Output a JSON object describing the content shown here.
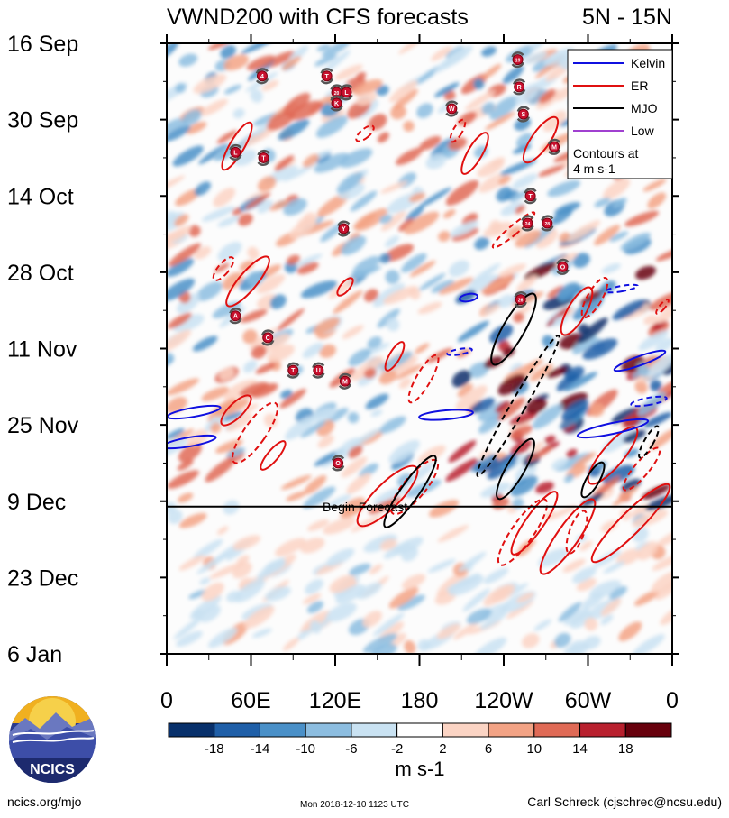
{
  "chart_data": {
    "type": "heatmap",
    "title": "VWND200 with CFS forecasts",
    "region": "5N - 15N",
    "xlabel": "",
    "ylabel": "",
    "x_ticks": [
      "0",
      "60E",
      "120E",
      "180",
      "120W",
      "60W",
      "0"
    ],
    "y_ticks": [
      "16 Sep",
      "30 Sep",
      "14 Oct",
      "28 Oct",
      "11 Nov",
      "25 Nov",
      "9 Dec",
      "23 Dec",
      "6 Jan"
    ],
    "xlim": [
      0,
      360
    ],
    "ylim": [
      "2018-09-16",
      "2019-01-06"
    ],
    "forecast_start": "2018-12-10",
    "forecast_label": "Begin Forecast",
    "colorbar": {
      "ticks": [
        "-18",
        "-14",
        "-10",
        "-6",
        "-2",
        "2",
        "6",
        "10",
        "14",
        "18"
      ],
      "units": "m s-1",
      "colors": [
        "#08306b",
        "#1f5fa8",
        "#4a90c8",
        "#8cbde0",
        "#c9e2f2",
        "#ffffff",
        "#fbd4c4",
        "#f3a385",
        "#e06a56",
        "#b8202e",
        "#67000d"
      ]
    },
    "legend": {
      "position": "top-right",
      "entries": [
        {
          "name": "Kelvin",
          "color": "#1010e0"
        },
        {
          "name": "ER",
          "color": "#e01010"
        },
        {
          "name": "MJO",
          "color": "#000000"
        },
        {
          "name": "Low",
          "color": "#a040d0"
        }
      ],
      "note_line1": "Contours at",
      "note_line2": "4 m s-1"
    },
    "storms": [
      {
        "label": "4",
        "lon": 68,
        "date": "2018-09-22"
      },
      {
        "label": "T",
        "lon": 114,
        "date": "2018-09-22"
      },
      {
        "label": "19",
        "lon": 250,
        "date": "2018-09-19"
      },
      {
        "label": "R",
        "lon": 251,
        "date": "2018-09-24"
      },
      {
        "label": "20",
        "lon": 121,
        "date": "2018-09-25"
      },
      {
        "label": "K",
        "lon": 121,
        "date": "2018-09-27"
      },
      {
        "label": "L",
        "lon": 128,
        "date": "2018-09-25"
      },
      {
        "label": "W",
        "lon": 203,
        "date": "2018-09-28"
      },
      {
        "label": "S",
        "lon": 254,
        "date": "2018-09-29"
      },
      {
        "label": "L",
        "lon": 49,
        "date": "2018-10-06"
      },
      {
        "label": "T",
        "lon": 69,
        "date": "2018-10-07"
      },
      {
        "label": "M",
        "lon": 276,
        "date": "2018-10-05"
      },
      {
        "label": "T",
        "lon": 259,
        "date": "2018-10-14"
      },
      {
        "label": "Y",
        "lon": 126,
        "date": "2018-10-20"
      },
      {
        "label": "24",
        "lon": 257,
        "date": "2018-10-19"
      },
      {
        "label": "28",
        "lon": 271,
        "date": "2018-10-19"
      },
      {
        "label": "O",
        "lon": 282,
        "date": "2018-10-27"
      },
      {
        "label": "26",
        "lon": 252,
        "date": "2018-11-02"
      },
      {
        "label": "A",
        "lon": 49,
        "date": "2018-11-05"
      },
      {
        "label": "C",
        "lon": 72,
        "date": "2018-11-09"
      },
      {
        "label": "T",
        "lon": 90,
        "date": "2018-11-15"
      },
      {
        "label": "U",
        "lon": 108,
        "date": "2018-11-15"
      },
      {
        "label": "M",
        "lon": 127,
        "date": "2018-11-17"
      },
      {
        "label": "O",
        "lon": 122,
        "date": "2018-12-02"
      }
    ]
  },
  "footer": {
    "site": "ncics.org/mjo",
    "timestamp": "Mon 2018-12-10 1123 UTC",
    "author": "Carl Schreck (cjschrec@ncsu.edu)"
  },
  "logo": {
    "text": "NCICS"
  }
}
